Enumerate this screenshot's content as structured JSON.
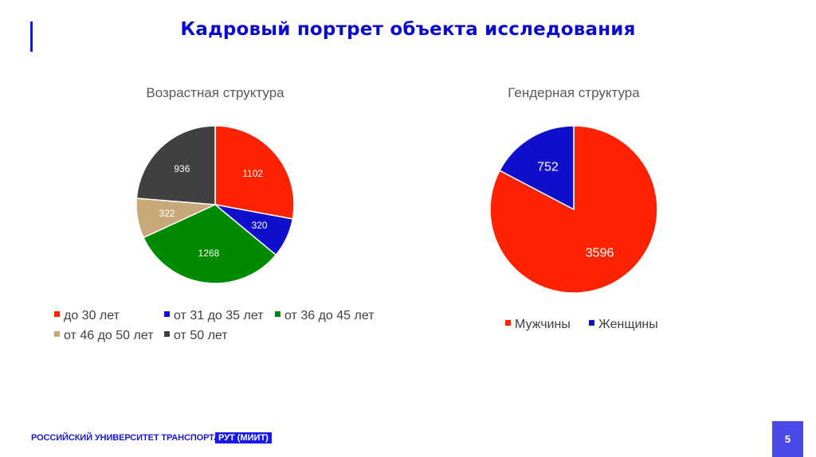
{
  "slide": {
    "title": "Кадровый портрет объекта исследования",
    "page_number": "5",
    "footer": {
      "university": "РОССИЙСКИЙ УНИВЕРСИТЕТ ТРАНСПОРТА",
      "badge": "РУТ (МИИТ)"
    },
    "colors": {
      "accent": "#1a1acc",
      "title": "#0b0bcf",
      "page_badge": "#4a4ae6"
    }
  },
  "chart_data": [
    {
      "type": "pie",
      "title": "Возрастная структура",
      "categories": [
        "до 30 лет",
        "от 31 до 35 лет",
        "от 36 до 45 лет",
        "от 46 до 50 лет",
        "от 50 лет"
      ],
      "values": [
        1102,
        320,
        1268,
        322,
        936
      ],
      "colors": [
        "#ff2200",
        "#1010cc",
        "#008a00",
        "#c8a878",
        "#404040"
      ],
      "data_labels": [
        "1102",
        "320",
        "1268",
        "322",
        "936"
      ],
      "start_angle": "12 o'clock, clockwise",
      "legend_position": "bottom"
    },
    {
      "type": "pie",
      "title": "Гендерная структура",
      "categories": [
        "Мужчины",
        "Женщины"
      ],
      "values": [
        3596,
        752
      ],
      "colors": [
        "#ff2200",
        "#1010cc"
      ],
      "data_labels": [
        "3596",
        "752"
      ],
      "start_angle": "12 o'clock, clockwise",
      "legend_position": "bottom"
    }
  ]
}
